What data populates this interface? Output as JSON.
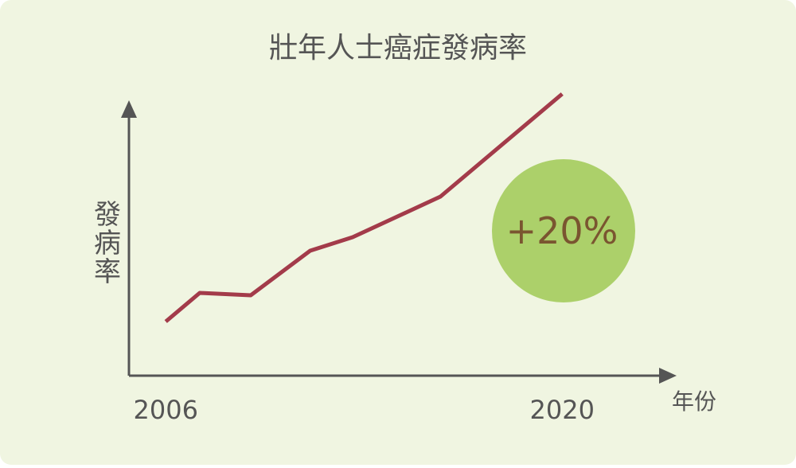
{
  "chart_data": {
    "type": "line",
    "title": "壯年人士癌症發病率",
    "y_label": "發病率",
    "x_label": "年份",
    "x": [
      2006,
      2007.2,
      2009,
      2011.1,
      2012.6,
      2015.7,
      2020
    ],
    "series": [
      {
        "color": "#a33b4a",
        "values": [
          68,
          104,
          101,
          157,
          174,
          225,
          354
        ]
      }
    ],
    "xlim": [
      2004.7,
      2023.9
    ],
    "xticks": [
      2006,
      2020
    ],
    "ylim": [
      0,
      342
    ],
    "annotation": "+20%",
    "annotation_color": "#acd06a"
  }
}
